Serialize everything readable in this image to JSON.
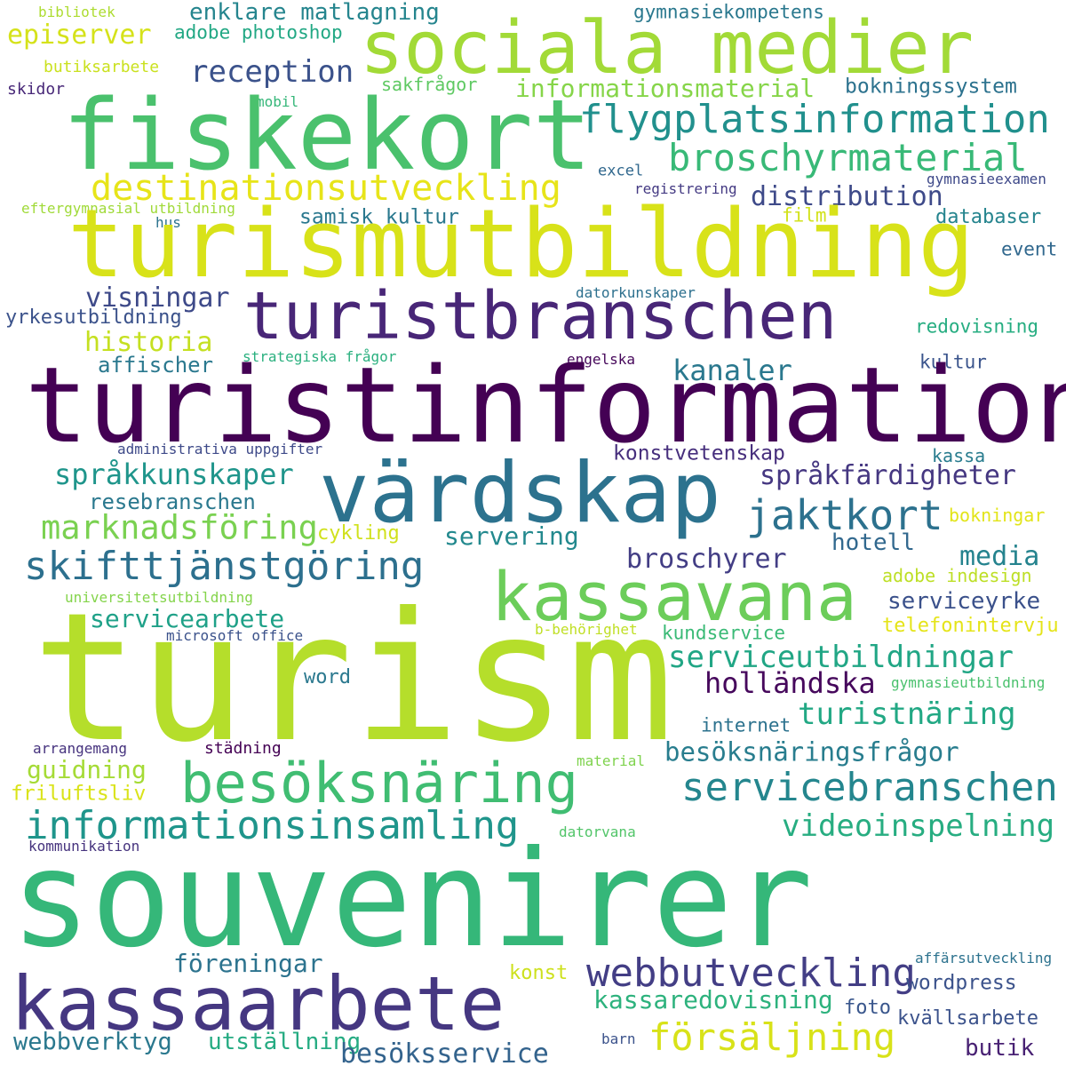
{
  "words": [
    {
      "id": "bibliotek",
      "text": "bibliotek",
      "color": "#addc30"
    },
    {
      "id": "episerver",
      "text": "episerver",
      "color": "#d5e21a"
    },
    {
      "id": "butiksarbete",
      "text": "butiksarbete",
      "color": "#cae11f"
    },
    {
      "id": "skidor",
      "text": "skidor",
      "color": "#482878"
    },
    {
      "id": "enklare-matlagning",
      "text": "enklare matlagning",
      "color": "#25858e"
    },
    {
      "id": "adobe-photoshop",
      "text": "adobe photoshop",
      "color": "#22a884"
    },
    {
      "id": "sociala-medier",
      "text": "sociala medier",
      "color": "#a2da37"
    },
    {
      "id": "gymnasiekompetens",
      "text": "gymnasiekompetens",
      "color": "#2a788e"
    },
    {
      "id": "reception",
      "text": "reception",
      "color": "#3b528b"
    },
    {
      "id": "sakfragor",
      "text": "sakfrågor",
      "color": "#5ec962"
    },
    {
      "id": "mobil",
      "text": "mobil",
      "color": "#35b779"
    },
    {
      "id": "informationsmaterial",
      "text": "informationsmaterial",
      "color": "#86d549"
    },
    {
      "id": "bokningssystem",
      "text": "bokningssystem",
      "color": "#2c728e"
    },
    {
      "id": "fiskekort",
      "text": "fiskekort",
      "color": "#4ac16d"
    },
    {
      "id": "flygplatsinformation",
      "text": "flygplatsinformation",
      "color": "#21908d"
    },
    {
      "id": "broschyrmaterial",
      "text": "broschyrmaterial",
      "color": "#38b977"
    },
    {
      "id": "excel",
      "text": "excel",
      "color": "#31688e"
    },
    {
      "id": "destinationsutveckling",
      "text": "destinationsutveckling",
      "color": "#e7e419"
    },
    {
      "id": "registrering",
      "text": "registrering",
      "color": "#443a83"
    },
    {
      "id": "gymnasieexamen",
      "text": "gymnasieexamen",
      "color": "#3e4989"
    },
    {
      "id": "distribution",
      "text": "distribution",
      "color": "#3e4a89"
    },
    {
      "id": "eftergymnasial-utbildning",
      "text": "eftergymnasial utbildning",
      "color": "#a0da39"
    },
    {
      "id": "hus",
      "text": "hus",
      "color": "#2c738e"
    },
    {
      "id": "samisk-kultur",
      "text": "samisk kultur",
      "color": "#2a788e"
    },
    {
      "id": "film",
      "text": "film",
      "color": "#d2e21b"
    },
    {
      "id": "databaser",
      "text": "databaser",
      "color": "#25848e"
    },
    {
      "id": "turismutbildning",
      "text": "turismutbildning",
      "color": "#d8e219"
    },
    {
      "id": "event",
      "text": "event",
      "color": "#31688e"
    },
    {
      "id": "visningar",
      "text": "visningar",
      "color": "#3e4a89"
    },
    {
      "id": "turistbranschen",
      "text": "turistbranschen",
      "color": "#482677"
    },
    {
      "id": "datorkunskaper",
      "text": "datorkunskaper",
      "color": "#2d708e"
    },
    {
      "id": "yrkesutbildning",
      "text": "yrkesutbildning",
      "color": "#3b528b"
    },
    {
      "id": "redovisning",
      "text": "redovisning",
      "color": "#26ad81"
    },
    {
      "id": "historia",
      "text": "historia",
      "color": "#c5e021"
    },
    {
      "id": "affischer",
      "text": "affischer",
      "color": "#2a788e"
    },
    {
      "id": "strategiska-fragor",
      "text": "strategiska frågor",
      "color": "#2ab07f"
    },
    {
      "id": "engelska",
      "text": "engelska",
      "color": "#46075a"
    },
    {
      "id": "kanaler",
      "text": "kanaler",
      "color": "#2a788e"
    },
    {
      "id": "kultur",
      "text": "kultur",
      "color": "#3a548c"
    },
    {
      "id": "turistinformation",
      "text": "turistinformation",
      "color": "#440154"
    },
    {
      "id": "administrativa-uppgifter",
      "text": "administrativa uppgifter",
      "color": "#3e4a89"
    },
    {
      "id": "kassa",
      "text": "kassa",
      "color": "#287c8e"
    },
    {
      "id": "konstvetenskap",
      "text": "konstvetenskap",
      "color": "#472f7d"
    },
    {
      "id": "vardskap",
      "text": "värdskap",
      "color": "#2c728e"
    },
    {
      "id": "sprakkunskaper",
      "text": "språkkunskaper",
      "color": "#1f958b"
    },
    {
      "id": "sprakfardigheter",
      "text": "språkfärdigheter",
      "color": "#453781"
    },
    {
      "id": "resebranschen",
      "text": "resebranschen",
      "color": "#2a788e"
    },
    {
      "id": "jaktkort",
      "text": "jaktkort",
      "color": "#2c718e"
    },
    {
      "id": "bokningar",
      "text": "bokningar",
      "color": "#e2e418"
    },
    {
      "id": "marknadsforing",
      "text": "marknadsföring",
      "color": "#7ad151"
    },
    {
      "id": "cykling",
      "text": "cykling",
      "color": "#d0e11c"
    },
    {
      "id": "servering",
      "text": "servering",
      "color": "#23898e"
    },
    {
      "id": "hotell",
      "text": "hotell",
      "color": "#31688e"
    },
    {
      "id": "skifttjanstgoring",
      "text": "skifttjänstgöring",
      "color": "#2d708e"
    },
    {
      "id": "broschyrer",
      "text": "broschyrer",
      "color": "#433e85"
    },
    {
      "id": "media",
      "text": "media",
      "color": "#25838e"
    },
    {
      "id": "adobe-indesign",
      "text": "adobe indesign",
      "color": "#bddf26"
    },
    {
      "id": "kassavana",
      "text": "kassavana",
      "color": "#6ccd5a"
    },
    {
      "id": "universitetsutbildning",
      "text": "universitetsutbildning",
      "color": "#84d44b"
    },
    {
      "id": "serviceyrke",
      "text": "serviceyrke",
      "color": "#3b518b"
    },
    {
      "id": "servicearbete",
      "text": "servicearbete",
      "color": "#1fa188"
    },
    {
      "id": "microsoft-office",
      "text": "microsoft office",
      "color": "#3b528b"
    },
    {
      "id": "b-behorighet",
      "text": "b-behörighet",
      "color": "#c0df25"
    },
    {
      "id": "kundservice",
      "text": "kundservice",
      "color": "#3aba76"
    },
    {
      "id": "telefonintervju",
      "text": "telefonintervju",
      "color": "#e5e419"
    },
    {
      "id": "turism",
      "text": "turism",
      "color": "#b5de2b"
    },
    {
      "id": "serviceutbildningar",
      "text": "serviceutbildningar",
      "color": "#21a685"
    },
    {
      "id": "hollandska",
      "text": "holländska",
      "color": "#46085c"
    },
    {
      "id": "word",
      "text": "word",
      "color": "#2a788e"
    },
    {
      "id": "gymnasieutbildning",
      "text": "gymnasieutbildning",
      "color": "#4ac16d"
    },
    {
      "id": "turistnaring",
      "text": "turistnäring",
      "color": "#22a884"
    },
    {
      "id": "internet",
      "text": "internet",
      "color": "#2c728e"
    },
    {
      "id": "arrangemang",
      "text": "arrangemang",
      "color": "#46337e"
    },
    {
      "id": "stadning",
      "text": "städning",
      "color": "#440154"
    },
    {
      "id": "besoksnaringsfragor",
      "text": "besöksnäringsfrågor",
      "color": "#287d8e"
    },
    {
      "id": "guidning",
      "text": "guidning",
      "color": "#a5db36"
    },
    {
      "id": "material",
      "text": "material",
      "color": "#7fd34e"
    },
    {
      "id": "besoksnaring",
      "text": "besöksnäring",
      "color": "#40bd72"
    },
    {
      "id": "friluftsliv",
      "text": "friluftsliv",
      "color": "#dae319"
    },
    {
      "id": "servicebranschen",
      "text": "servicebranschen",
      "color": "#24868e"
    },
    {
      "id": "informationsinsamling",
      "text": "informationsinsamling",
      "color": "#1f958b"
    },
    {
      "id": "videoinspelning",
      "text": "videoinspelning",
      "color": "#27ad81"
    },
    {
      "id": "datorvana",
      "text": "datorvana",
      "color": "#52c569"
    },
    {
      "id": "kommunikation",
      "text": "kommunikation",
      "color": "#46337e"
    },
    {
      "id": "souvenirer",
      "text": "souvenirer",
      "color": "#35b779"
    },
    {
      "id": "affarsutveckling",
      "text": "affärsutveckling",
      "color": "#2c728e"
    },
    {
      "id": "foreningar",
      "text": "föreningar",
      "color": "#2c738e"
    },
    {
      "id": "konst",
      "text": "konst",
      "color": "#cde11d"
    },
    {
      "id": "webbutveckling",
      "text": "webbutveckling",
      "color": "#433e85"
    },
    {
      "id": "wordpress",
      "text": "wordpress",
      "color": "#3b528b"
    },
    {
      "id": "kassaarbete",
      "text": "kassaarbete",
      "color": "#453781"
    },
    {
      "id": "kassaredovisning",
      "text": "kassaredovisning",
      "color": "#2db27d"
    },
    {
      "id": "foto",
      "text": "foto",
      "color": "#39568c"
    },
    {
      "id": "kvallsarbete",
      "text": "kvällsarbete",
      "color": "#3b528b"
    },
    {
      "id": "webbverktyg",
      "text": "webbverktyg",
      "color": "#2a788e"
    },
    {
      "id": "utstallning",
      "text": "utställning",
      "color": "#25ab82"
    },
    {
      "id": "forsaljning",
      "text": "försäljning",
      "color": "#d8e219"
    },
    {
      "id": "butik",
      "text": "butik",
      "color": "#482173"
    },
    {
      "id": "besoksservice",
      "text": "besöksservice",
      "color": "#33638d"
    },
    {
      "id": "barn",
      "text": "barn",
      "color": "#3b528b"
    }
  ]
}
